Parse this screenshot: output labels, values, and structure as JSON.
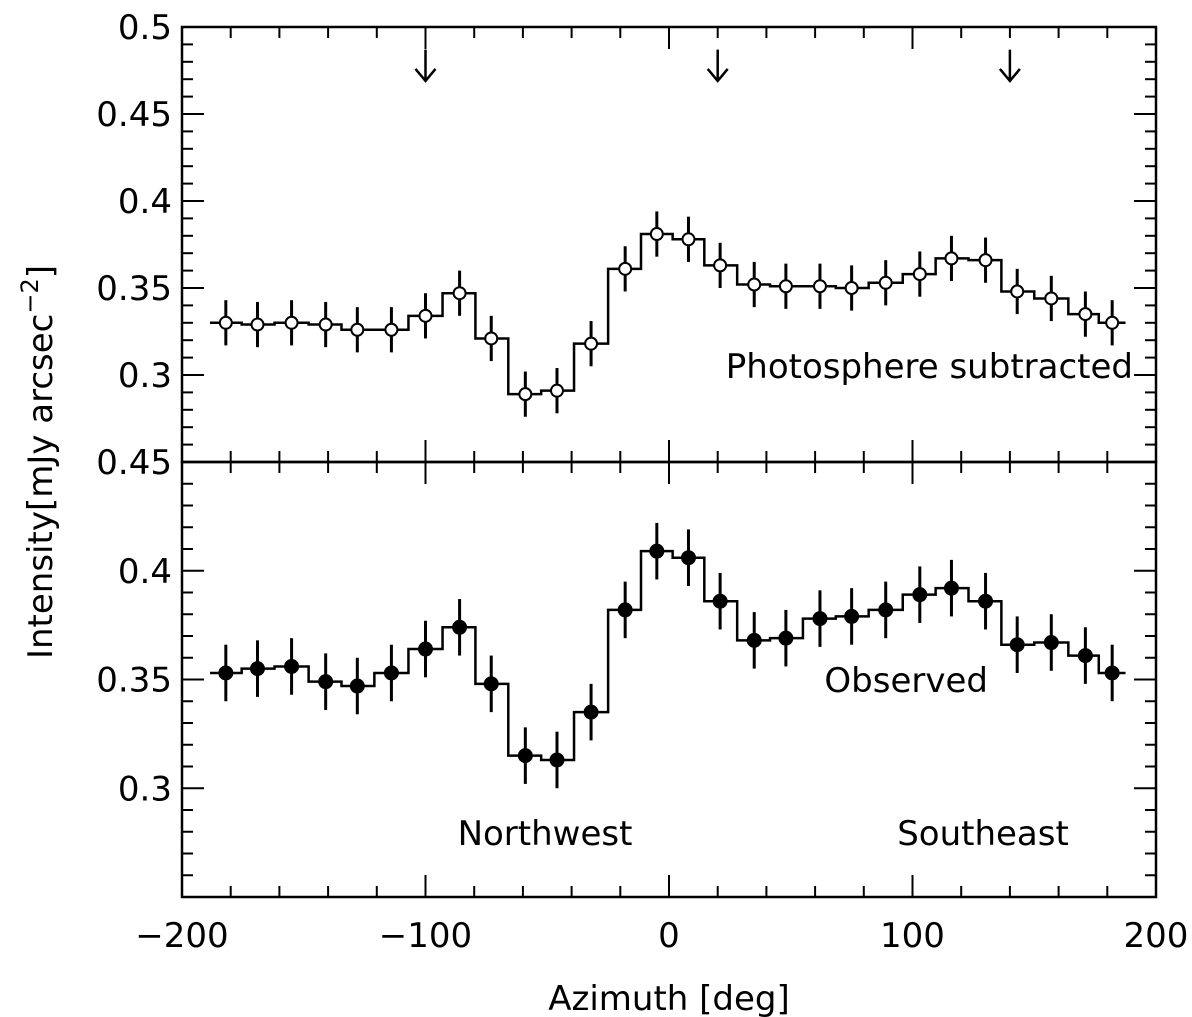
{
  "chart_data": [
    {
      "type": "line",
      "panel": "top",
      "annotation": "Photosphere subtracted",
      "marker": "open-circle",
      "step": true,
      "ylim": [
        0.25,
        0.5
      ],
      "y_tick_values": [
        0.3,
        0.35,
        0.4,
        0.45,
        0.5
      ],
      "y_tick_labels": [
        "0.3",
        "0.35",
        "0.4",
        "0.45",
        "0.5"
      ],
      "arrows_x": [
        -100,
        20,
        140
      ],
      "x": [
        -182,
        -169,
        -155,
        -141,
        -128,
        -114,
        -100,
        -86,
        -73,
        -59,
        -46,
        -32,
        -18,
        -5,
        8,
        21,
        35,
        48,
        62,
        75,
        89,
        103,
        116,
        130,
        143,
        157,
        171,
        182
      ],
      "values": [
        0.33,
        0.329,
        0.33,
        0.329,
        0.326,
        0.326,
        0.334,
        0.347,
        0.321,
        0.289,
        0.291,
        0.318,
        0.361,
        0.381,
        0.378,
        0.363,
        0.352,
        0.351,
        0.351,
        0.35,
        0.353,
        0.358,
        0.367,
        0.366,
        0.348,
        0.344,
        0.335,
        0.33
      ],
      "errors": [
        0.013,
        0.013,
        0.013,
        0.013,
        0.013,
        0.013,
        0.013,
        0.013,
        0.013,
        0.013,
        0.013,
        0.013,
        0.013,
        0.013,
        0.013,
        0.013,
        0.013,
        0.013,
        0.013,
        0.013,
        0.013,
        0.013,
        0.013,
        0.013,
        0.013,
        0.013,
        0.013,
        0.013
      ]
    },
    {
      "type": "line",
      "panel": "bottom",
      "annotation": "Observed",
      "marker": "filled-circle",
      "step": true,
      "ylim": [
        0.25,
        0.45
      ],
      "y_tick_values": [
        0.3,
        0.35,
        0.4,
        0.45
      ],
      "y_tick_labels": [
        "0.3",
        "0.35",
        "0.4",
        "0.45"
      ],
      "region_labels": [
        "Northwest",
        "Southeast"
      ],
      "x": [
        -182,
        -169,
        -155,
        -141,
        -128,
        -114,
        -100,
        -86,
        -73,
        -59,
        -46,
        -32,
        -18,
        -5,
        8,
        21,
        35,
        48,
        62,
        75,
        89,
        103,
        116,
        130,
        143,
        157,
        171,
        182
      ],
      "values": [
        0.353,
        0.355,
        0.356,
        0.349,
        0.347,
        0.353,
        0.364,
        0.374,
        0.348,
        0.315,
        0.313,
        0.335,
        0.382,
        0.409,
        0.406,
        0.386,
        0.368,
        0.369,
        0.378,
        0.379,
        0.382,
        0.389,
        0.392,
        0.386,
        0.366,
        0.367,
        0.361,
        0.353
      ],
      "errors": [
        0.013,
        0.013,
        0.013,
        0.013,
        0.013,
        0.013,
        0.013,
        0.013,
        0.013,
        0.013,
        0.013,
        0.013,
        0.013,
        0.013,
        0.013,
        0.013,
        0.013,
        0.013,
        0.013,
        0.013,
        0.013,
        0.013,
        0.013,
        0.013,
        0.013,
        0.013,
        0.013,
        0.013
      ]
    }
  ],
  "axes": {
    "xlabel": "Azimuth [deg]",
    "ylabel_main": "Intensity[mJy arcsec",
    "ylabel_exponent": "−2",
    "ylabel_close": "]",
    "xlim": [
      -200,
      200
    ],
    "x_tick_values": [
      -200,
      -100,
      0,
      100,
      200
    ],
    "x_tick_labels": [
      "−200",
      "−100",
      "0",
      "100",
      "200"
    ]
  },
  "colors": {
    "ink": "#000000",
    "background": "#ffffff"
  }
}
